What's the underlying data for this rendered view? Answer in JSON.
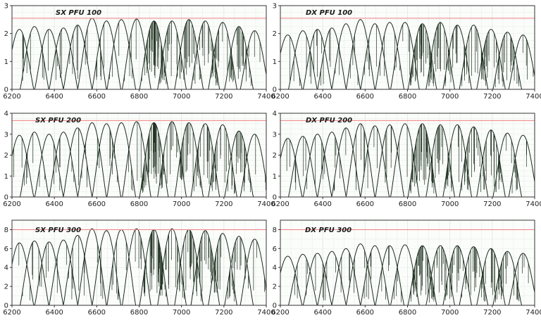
{
  "colors": {
    "spectrum": "#1b2a1f",
    "spectrum_fill": "#223322",
    "reference_line": "#f08080",
    "grid": "#dfe7df",
    "axes": "#333333"
  },
  "chart_data": [
    {
      "type": "line",
      "title": "SX PFU 100",
      "xlim": [
        6200,
        7400
      ],
      "ylim": [
        0,
        3
      ],
      "xticks": [
        6200,
        6400,
        6600,
        6800,
        7000,
        7200,
        7400
      ],
      "xtick_labels": [
        "6200",
        "6400",
        "6600",
        "6800",
        "7000",
        "7200",
        "7400"
      ],
      "yticks": [
        0,
        1,
        2,
        3
      ],
      "ytick_labels": [
        "0",
        "1",
        "2",
        "3"
      ],
      "reference_line": 2.55,
      "grid": true,
      "orders": {
        "centers": [
          6235,
          6306,
          6375,
          6443,
          6510,
          6578,
          6646,
          6716,
          6788,
          6870,
          6955,
          7035,
          7112,
          7194,
          7271,
          7345
        ],
        "peaks": [
          2.15,
          2.25,
          2.15,
          2.2,
          2.3,
          2.55,
          2.45,
          2.5,
          2.52,
          2.45,
          2.45,
          2.5,
          2.45,
          2.4,
          2.25,
          2.1
        ]
      }
    },
    {
      "type": "line",
      "title": "DX PFU 100",
      "xlim": [
        6200,
        7400
      ],
      "ylim": [
        0,
        3
      ],
      "xticks": [
        6200,
        6400,
        6600,
        6800,
        7000,
        7200,
        7400
      ],
      "xtick_labels": [
        "6200",
        "6400",
        "6600",
        "6800",
        "7000",
        "7200",
        "7400"
      ],
      "yticks": [
        0,
        1,
        2,
        3
      ],
      "ytick_labels": [
        "0",
        "1",
        "2",
        "3"
      ],
      "reference_line": 2.55,
      "grid": true,
      "orders": {
        "centers": [
          6235,
          6306,
          6375,
          6443,
          6510,
          6578,
          6646,
          6716,
          6788,
          6870,
          6955,
          7035,
          7112,
          7194,
          7271,
          7345
        ],
        "peaks": [
          1.95,
          2.1,
          2.15,
          2.2,
          2.35,
          2.5,
          2.35,
          2.4,
          2.4,
          2.35,
          2.4,
          2.3,
          2.3,
          2.15,
          2.05,
          1.95
        ]
      }
    },
    {
      "type": "line",
      "title": "SX PFU 200",
      "xlim": [
        6200,
        7400
      ],
      "ylim": [
        0,
        4
      ],
      "xticks": [
        6200,
        6400,
        6600,
        6800,
        7000,
        7200,
        7400
      ],
      "xtick_labels": [
        "6200",
        "6400",
        "6600",
        "6800",
        "7000",
        "7200",
        "7400"
      ],
      "yticks": [
        0,
        1,
        2,
        3,
        4
      ],
      "ytick_labels": [
        "0",
        "1",
        "2",
        "3",
        "4"
      ],
      "reference_line": 3.65,
      "grid": true,
      "orders": {
        "centers": [
          6235,
          6306,
          6375,
          6443,
          6510,
          6578,
          6646,
          6716,
          6788,
          6870,
          6955,
          7035,
          7112,
          7194,
          7271,
          7345
        ],
        "peaks": [
          2.95,
          3.1,
          3.0,
          3.1,
          3.3,
          3.55,
          3.5,
          3.55,
          3.6,
          3.55,
          3.6,
          3.55,
          3.5,
          3.45,
          3.15,
          3.0
        ]
      }
    },
    {
      "type": "line",
      "title": "DX PFU 200",
      "xlim": [
        6200,
        7400
      ],
      "ylim": [
        0,
        4
      ],
      "xticks": [
        6200,
        6400,
        6600,
        6800,
        7000,
        7200,
        7400
      ],
      "xtick_labels": [
        "6200",
        "6400",
        "6600",
        "6800",
        "7000",
        "7200",
        "7400"
      ],
      "yticks": [
        0,
        1,
        2,
        3,
        4
      ],
      "ytick_labels": [
        "0",
        "1",
        "2",
        "3",
        "4"
      ],
      "reference_line": 3.65,
      "grid": true,
      "orders": {
        "centers": [
          6235,
          6306,
          6375,
          6443,
          6510,
          6578,
          6646,
          6716,
          6788,
          6870,
          6955,
          7035,
          7112,
          7194,
          7271,
          7345
        ],
        "peaks": [
          2.8,
          2.9,
          3.0,
          3.1,
          3.3,
          3.5,
          3.4,
          3.45,
          3.5,
          3.5,
          3.45,
          3.45,
          3.35,
          3.2,
          3.05,
          2.95
        ]
      }
    },
    {
      "type": "line",
      "title": "SX PFU 300",
      "xlim": [
        6200,
        7400
      ],
      "ylim": [
        0,
        9
      ],
      "xticks": [
        6200,
        6400,
        6600,
        6800,
        7000,
        7200,
        7400
      ],
      "xtick_labels": [
        "6200",
        "6400",
        "6600",
        "6800",
        "7000",
        "7200",
        "7400"
      ],
      "yticks": [
        0,
        2,
        4,
        6,
        8
      ],
      "ytick_labels": [
        "0",
        "2",
        "4",
        "6",
        "8"
      ],
      "reference_line": 8.0,
      "grid": true,
      "orders": {
        "centers": [
          6235,
          6306,
          6375,
          6443,
          6510,
          6578,
          6646,
          6716,
          6788,
          6870,
          6955,
          7035,
          7112,
          7194,
          7271,
          7345
        ],
        "peaks": [
          6.6,
          6.8,
          6.7,
          6.9,
          7.4,
          8.1,
          7.9,
          8.0,
          8.1,
          8.0,
          8.1,
          8.0,
          7.9,
          7.6,
          7.3,
          7.0
        ]
      }
    },
    {
      "type": "line",
      "title": "DX PFU 300",
      "xlim": [
        6200,
        7400
      ],
      "ylim": [
        0,
        9
      ],
      "xticks": [
        6200,
        6400,
        6600,
        6800,
        7000,
        7200,
        7400
      ],
      "xtick_labels": [
        "6200",
        "6400",
        "6600",
        "6800",
        "7000",
        "7200",
        "7400"
      ],
      "yticks": [
        0,
        2,
        4,
        6,
        8
      ],
      "ytick_labels": [
        "0",
        "2",
        "4",
        "6",
        "8"
      ],
      "reference_line": 8.0,
      "grid": true,
      "orders": {
        "centers": [
          6235,
          6306,
          6375,
          6443,
          6510,
          6578,
          6646,
          6716,
          6788,
          6870,
          6955,
          7035,
          7112,
          7194,
          7271,
          7345
        ],
        "peaks": [
          5.2,
          5.4,
          5.5,
          5.7,
          6.0,
          6.5,
          6.3,
          6.3,
          6.4,
          6.3,
          6.3,
          6.3,
          6.2,
          6.0,
          5.7,
          5.5
        ]
      }
    }
  ]
}
